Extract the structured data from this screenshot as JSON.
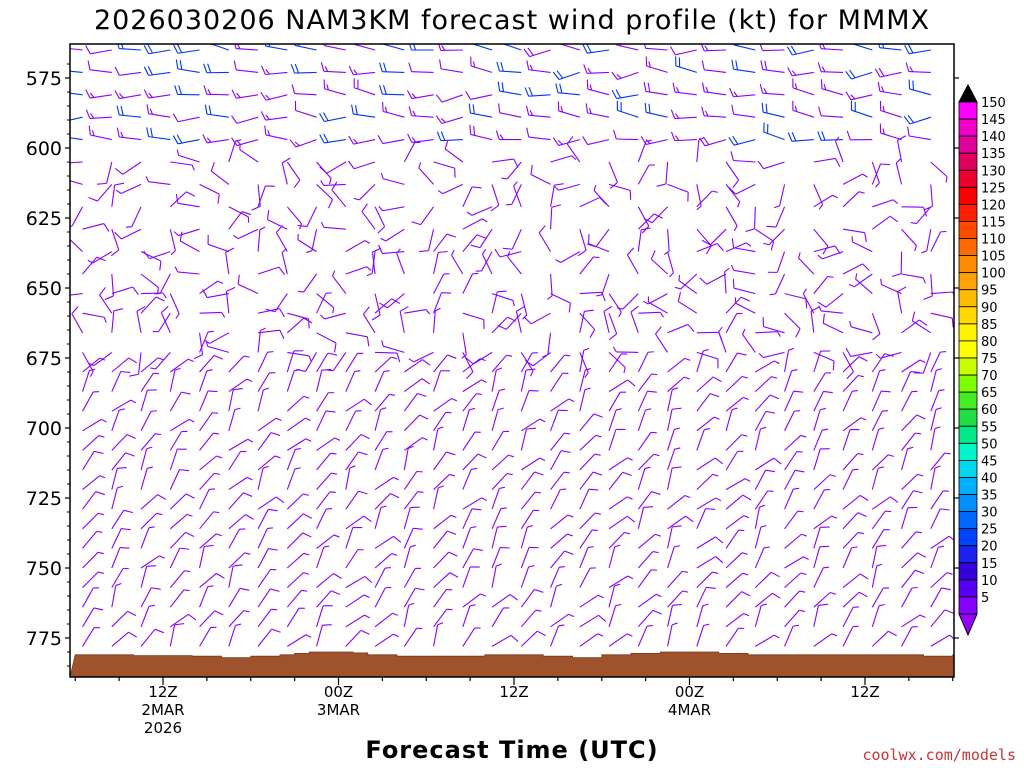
{
  "title": "2026030206 NAM3KM forecast wind profile (kt) for MMMX",
  "credit": "coolwx.com/models",
  "chart_data": {
    "type": "wind-barb time-height profile",
    "xlabel": "Forecast Time (UTC)",
    "ylabel": "",
    "ylim": [
      565,
      788
    ],
    "y_inverted": true,
    "y_ticks": [
      575,
      600,
      625,
      650,
      675,
      700,
      725,
      750,
      775
    ],
    "x_ticks": [
      {
        "hour": 12,
        "lines": [
          "12Z",
          "2MAR",
          "2026"
        ]
      },
      {
        "hour": 24,
        "lines": [
          "00Z",
          "3MAR"
        ]
      },
      {
        "hour": 36,
        "lines": [
          "12Z"
        ]
      },
      {
        "hour": 48,
        "lines": [
          "00Z",
          "4MAR"
        ]
      },
      {
        "hour": 60,
        "lines": [
          "12Z"
        ]
      }
    ],
    "xlim_hours": [
      6,
      66
    ],
    "colorbar": {
      "unit": "kt",
      "labels": [
        150,
        145,
        140,
        135,
        130,
        125,
        120,
        115,
        110,
        105,
        100,
        95,
        90,
        85,
        80,
        75,
        70,
        65,
        60,
        55,
        50,
        45,
        40,
        35,
        30,
        25,
        20,
        15,
        10,
        5
      ],
      "colors": [
        "#ff00ff",
        "#ee00c8",
        "#e0009a",
        "#e2005e",
        "#ec0030",
        "#fb0000",
        "#ff1f00",
        "#ff4a00",
        "#ff6b00",
        "#ff8a00",
        "#ffa100",
        "#ffbb00",
        "#ffd800",
        "#fff200",
        "#ffff00",
        "#c8ff00",
        "#7cff00",
        "#44ee22",
        "#22dd44",
        "#00e887",
        "#00f5c8",
        "#00d8f0",
        "#00b0ff",
        "#0090ff",
        "#0066ff",
        "#0044ff",
        "#1b22ee",
        "#3300dd",
        "#5500ee",
        "#8800ff"
      ],
      "top_arrow_color": "#000000",
      "bottom_arrow_color": "#9900ff"
    },
    "terrain_surface_hpa": [
      {
        "hour": 6,
        "p": 781
      },
      {
        "hour": 8,
        "p": 781
      },
      {
        "hour": 10,
        "p": 781.3
      },
      {
        "hour": 12,
        "p": 781.3
      },
      {
        "hour": 14,
        "p": 781.5
      },
      {
        "hour": 16,
        "p": 782
      },
      {
        "hour": 18,
        "p": 781.5
      },
      {
        "hour": 20,
        "p": 781
      },
      {
        "hour": 21,
        "p": 780.5
      },
      {
        "hour": 22,
        "p": 780
      },
      {
        "hour": 24,
        "p": 780
      },
      {
        "hour": 25,
        "p": 780.3
      },
      {
        "hour": 26,
        "p": 781
      },
      {
        "hour": 28,
        "p": 781.5
      },
      {
        "hour": 32,
        "p": 781.5
      },
      {
        "hour": 34,
        "p": 781
      },
      {
        "hour": 36,
        "p": 781
      },
      {
        "hour": 38,
        "p": 781.5
      },
      {
        "hour": 40,
        "p": 782
      },
      {
        "hour": 42,
        "p": 781
      },
      {
        "hour": 44,
        "p": 780.5
      },
      {
        "hour": 46,
        "p": 780
      },
      {
        "hour": 48,
        "p": 780
      },
      {
        "hour": 50,
        "p": 780.5
      },
      {
        "hour": 52,
        "p": 781
      },
      {
        "hour": 62,
        "p": 781
      },
      {
        "hour": 64,
        "p": 781.5
      },
      {
        "hour": 66,
        "p": 781
      }
    ],
    "barb_color": "#8800ff",
    "strong_barb_color": "#0033ff",
    "barb_speed_range_kt": [
      0,
      25
    ],
    "barb_regime": [
      {
        "levels": "565-600",
        "direction": "W to SW",
        "speed_kt": "10-20"
      },
      {
        "levels": "600-675",
        "direction": "variable",
        "speed_kt": "5-10"
      },
      {
        "levels": "675-780",
        "direction": "N to NE",
        "speed_kt": "5-10"
      }
    ]
  }
}
